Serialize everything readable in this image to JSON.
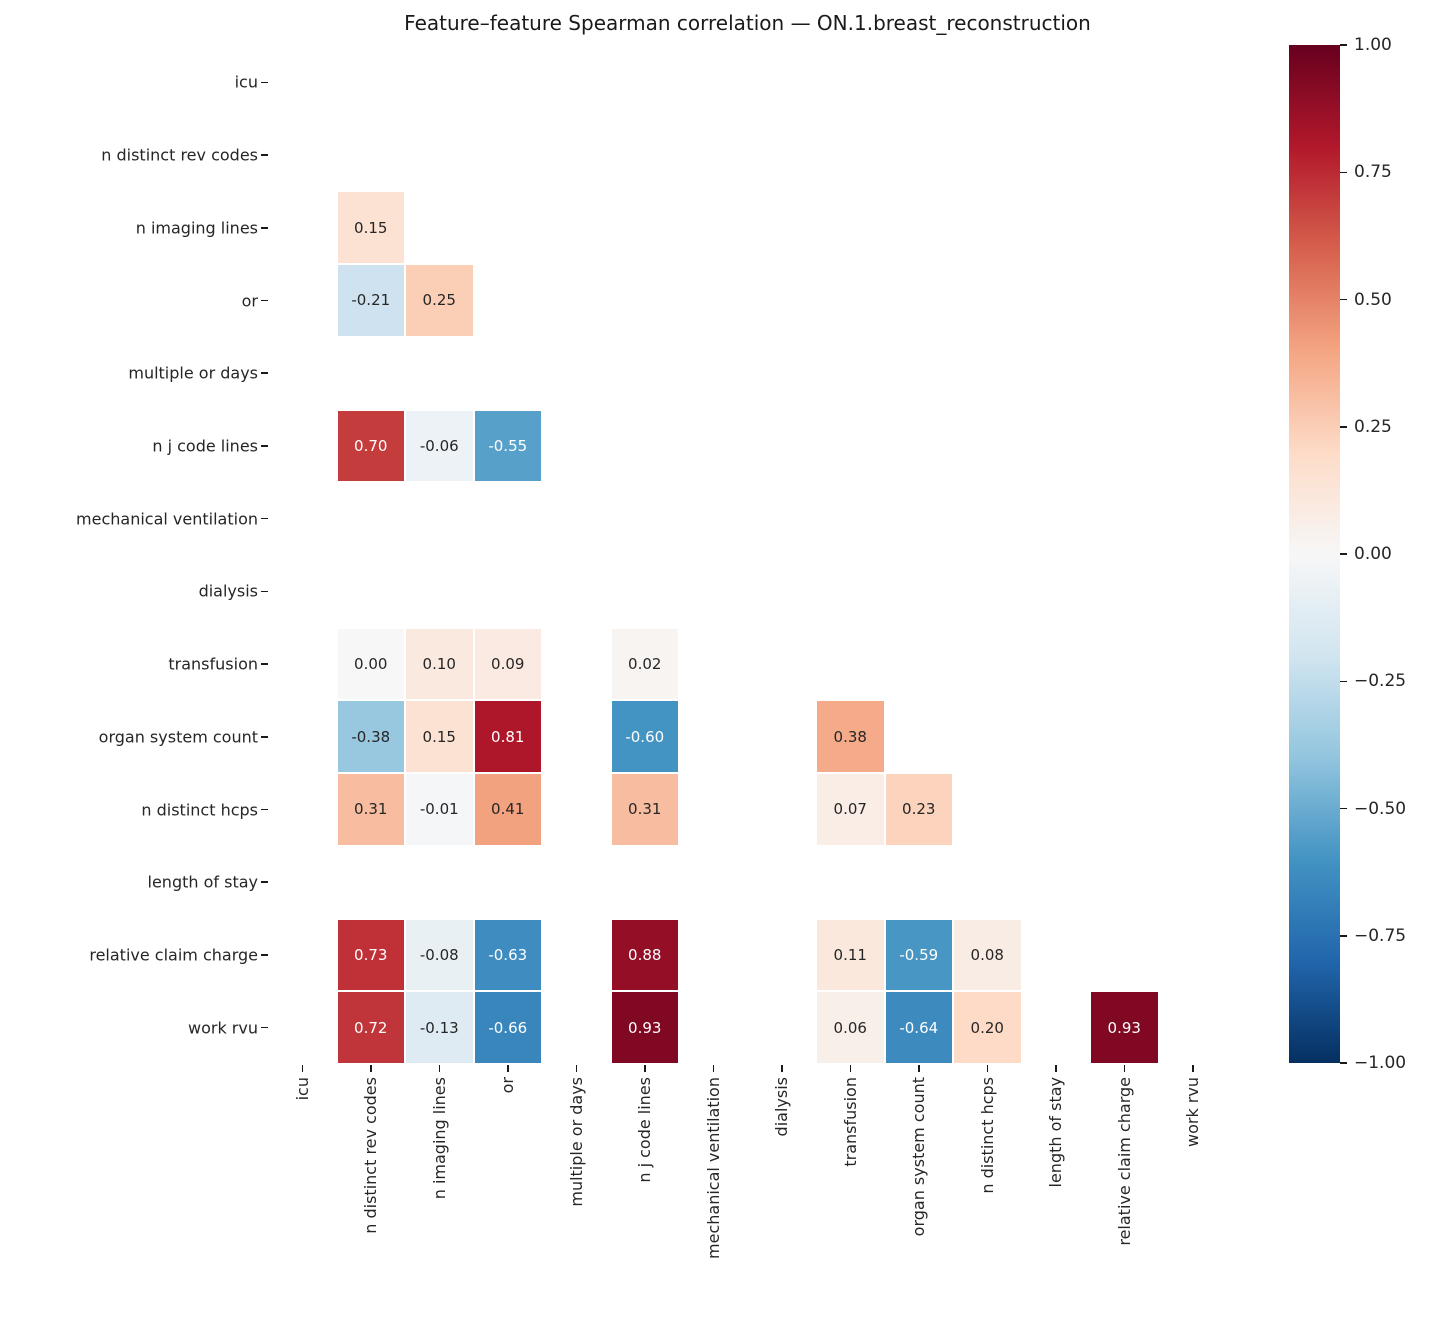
{
  "title": "Feature–feature Spearman correlation — ON.1.breast_reconstruction",
  "chart_data": {
    "type": "heatmap",
    "subtype": "lower-triangle correlation matrix",
    "colormap": "RdBu_r",
    "vmin": -1.0,
    "vmax": 1.0,
    "grid_line_color": "#ffffff",
    "annot_text_dark": "#262626",
    "annot_text_light": "#ffffff",
    "colormap_anchors": [
      "#053061",
      "#2166ac",
      "#4393c3",
      "#92c5de",
      "#d1e5f0",
      "#f7f7f7",
      "#fddbc7",
      "#f4a582",
      "#d6604d",
      "#b2182b",
      "#67001f"
    ],
    "features": [
      "icu",
      "n distinct rev codes",
      "n imaging lines",
      "or",
      "multiple or days",
      "n j code lines",
      "mechanical ventilation",
      "dialysis",
      "transfusion",
      "organ system count",
      "n distinct hcps",
      "length of stay",
      "relative claim charge",
      "work rvu"
    ],
    "cells": [
      {
        "y": "n imaging lines",
        "x": "n distinct rev codes",
        "v": 0.15
      },
      {
        "y": "or",
        "x": "n distinct rev codes",
        "v": -0.21
      },
      {
        "y": "or",
        "x": "n imaging lines",
        "v": 0.25
      },
      {
        "y": "n j code lines",
        "x": "n distinct rev codes",
        "v": 0.7
      },
      {
        "y": "n j code lines",
        "x": "n imaging lines",
        "v": -0.06
      },
      {
        "y": "n j code lines",
        "x": "or",
        "v": -0.55
      },
      {
        "y": "transfusion",
        "x": "n distinct rev codes",
        "v": 0.0
      },
      {
        "y": "transfusion",
        "x": "n imaging lines",
        "v": 0.1
      },
      {
        "y": "transfusion",
        "x": "or",
        "v": 0.09
      },
      {
        "y": "transfusion",
        "x": "n j code lines",
        "v": 0.02
      },
      {
        "y": "organ system count",
        "x": "n distinct rev codes",
        "v": -0.38
      },
      {
        "y": "organ system count",
        "x": "n imaging lines",
        "v": 0.15
      },
      {
        "y": "organ system count",
        "x": "or",
        "v": 0.81
      },
      {
        "y": "organ system count",
        "x": "n j code lines",
        "v": -0.6
      },
      {
        "y": "organ system count",
        "x": "transfusion",
        "v": 0.38
      },
      {
        "y": "n distinct hcps",
        "x": "n distinct rev codes",
        "v": 0.31
      },
      {
        "y": "n distinct hcps",
        "x": "n imaging lines",
        "v": -0.01
      },
      {
        "y": "n distinct hcps",
        "x": "or",
        "v": 0.41
      },
      {
        "y": "n distinct hcps",
        "x": "n j code lines",
        "v": 0.31
      },
      {
        "y": "n distinct hcps",
        "x": "transfusion",
        "v": 0.07
      },
      {
        "y": "n distinct hcps",
        "x": "organ system count",
        "v": 0.23
      },
      {
        "y": "relative claim charge",
        "x": "n distinct rev codes",
        "v": 0.73
      },
      {
        "y": "relative claim charge",
        "x": "n imaging lines",
        "v": -0.08
      },
      {
        "y": "relative claim charge",
        "x": "or",
        "v": -0.63
      },
      {
        "y": "relative claim charge",
        "x": "n j code lines",
        "v": 0.88
      },
      {
        "y": "relative claim charge",
        "x": "transfusion",
        "v": 0.11
      },
      {
        "y": "relative claim charge",
        "x": "organ system count",
        "v": -0.59
      },
      {
        "y": "relative claim charge",
        "x": "n distinct hcps",
        "v": 0.08
      },
      {
        "y": "work rvu",
        "x": "n distinct rev codes",
        "v": 0.72
      },
      {
        "y": "work rvu",
        "x": "n imaging lines",
        "v": -0.13
      },
      {
        "y": "work rvu",
        "x": "or",
        "v": -0.66
      },
      {
        "y": "work rvu",
        "x": "n j code lines",
        "v": 0.93
      },
      {
        "y": "work rvu",
        "x": "transfusion",
        "v": 0.06
      },
      {
        "y": "work rvu",
        "x": "organ system count",
        "v": -0.64
      },
      {
        "y": "work rvu",
        "x": "n distinct hcps",
        "v": 0.2
      },
      {
        "y": "work rvu",
        "x": "relative claim charge",
        "v": 0.93
      }
    ],
    "colorbar": {
      "ticks": [
        {
          "label": "1.00",
          "v": 1.0
        },
        {
          "label": "0.75",
          "v": 0.75
        },
        {
          "label": "0.50",
          "v": 0.5
        },
        {
          "label": "0.25",
          "v": 0.25
        },
        {
          "label": "0.00",
          "v": 0.0
        },
        {
          "label": "−0.25",
          "v": -0.25
        },
        {
          "label": "−0.50",
          "v": -0.5
        },
        {
          "label": "−0.75",
          "v": -0.75
        },
        {
          "label": "−1.00",
          "v": -1.0
        }
      ]
    }
  }
}
